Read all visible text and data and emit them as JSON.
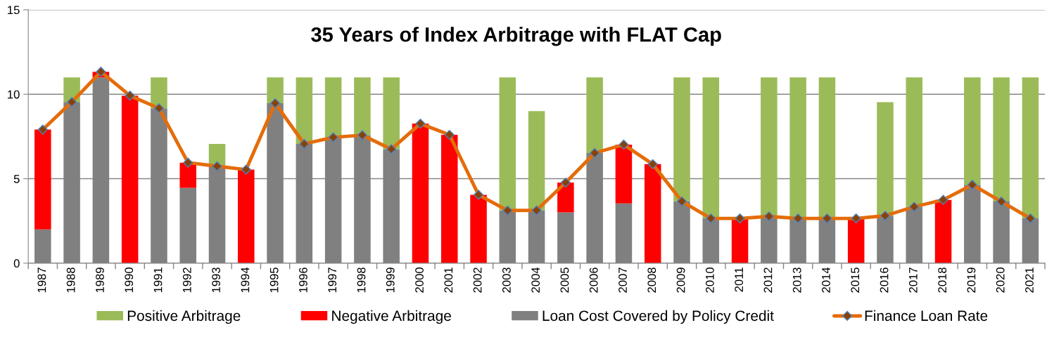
{
  "chart_data": {
    "type": "bar",
    "stacked": true,
    "title": "35 Years of Index Arbitrage with FLAT Cap",
    "categories": [
      "1987",
      "1988",
      "1989",
      "1990",
      "1991",
      "1992",
      "1993",
      "1994",
      "1995",
      "1996",
      "1997",
      "1998",
      "1999",
      "2000",
      "2001",
      "2002",
      "2003",
      "2004",
      "2005",
      "2006",
      "2007",
      "2008",
      "2009",
      "2010",
      "2011",
      "2012",
      "2013",
      "2014",
      "2015",
      "2016",
      "2017",
      "2018",
      "2019",
      "2020",
      "2021"
    ],
    "series": [
      {
        "name": "Loan Cost Covered by Policy Credit",
        "color": "#808080",
        "values": [
          2.0,
          9.54,
          11.0,
          null,
          9.17,
          4.46,
          5.74,
          null,
          9.47,
          7.06,
          7.45,
          7.58,
          6.75,
          null,
          null,
          null,
          3.12,
          3.13,
          3.01,
          6.52,
          3.54,
          null,
          3.66,
          2.65,
          null,
          2.77,
          2.65,
          2.65,
          null,
          2.81,
          3.34,
          null,
          4.64,
          3.65,
          2.65
        ]
      },
      {
        "name": "Negative Arbitrage",
        "color": "#ff0000",
        "values": [
          5.91,
          null,
          0.33,
          9.92,
          null,
          1.49,
          null,
          5.54,
          null,
          null,
          null,
          null,
          null,
          8.26,
          7.6,
          4.05,
          null,
          null,
          1.76,
          null,
          3.48,
          5.86,
          null,
          null,
          2.65,
          null,
          null,
          null,
          2.65,
          null,
          null,
          3.75,
          null,
          null,
          null
        ]
      },
      {
        "name": "Positive Arbitrage",
        "color": "#9bbb59",
        "values": [
          null,
          1.46,
          null,
          null,
          1.83,
          null,
          1.32,
          null,
          1.53,
          3.94,
          3.55,
          3.42,
          4.25,
          null,
          null,
          null,
          7.88,
          5.87,
          null,
          4.48,
          null,
          null,
          7.34,
          8.35,
          null,
          8.23,
          8.35,
          8.35,
          null,
          6.72,
          7.66,
          null,
          6.36,
          7.35,
          8.35
        ]
      },
      {
        "name": "Finance Loan Rate",
        "type": "line",
        "color": "#e46c0a",
        "values": [
          7.91,
          9.54,
          11.33,
          9.92,
          9.17,
          5.95,
          5.74,
          5.54,
          9.47,
          7.06,
          7.45,
          7.58,
          6.75,
          8.26,
          7.6,
          4.05,
          3.12,
          3.13,
          4.77,
          6.52,
          7.02,
          5.86,
          3.66,
          2.65,
          2.65,
          2.77,
          2.65,
          2.65,
          2.65,
          2.81,
          3.34,
          3.75,
          4.64,
          3.65,
          2.65
        ]
      }
    ],
    "ylim": [
      0,
      15
    ],
    "yticks": [
      0,
      5,
      10,
      15
    ],
    "grid": "y",
    "legend": "bottom",
    "marker": "diamond",
    "line_style": "solid"
  }
}
